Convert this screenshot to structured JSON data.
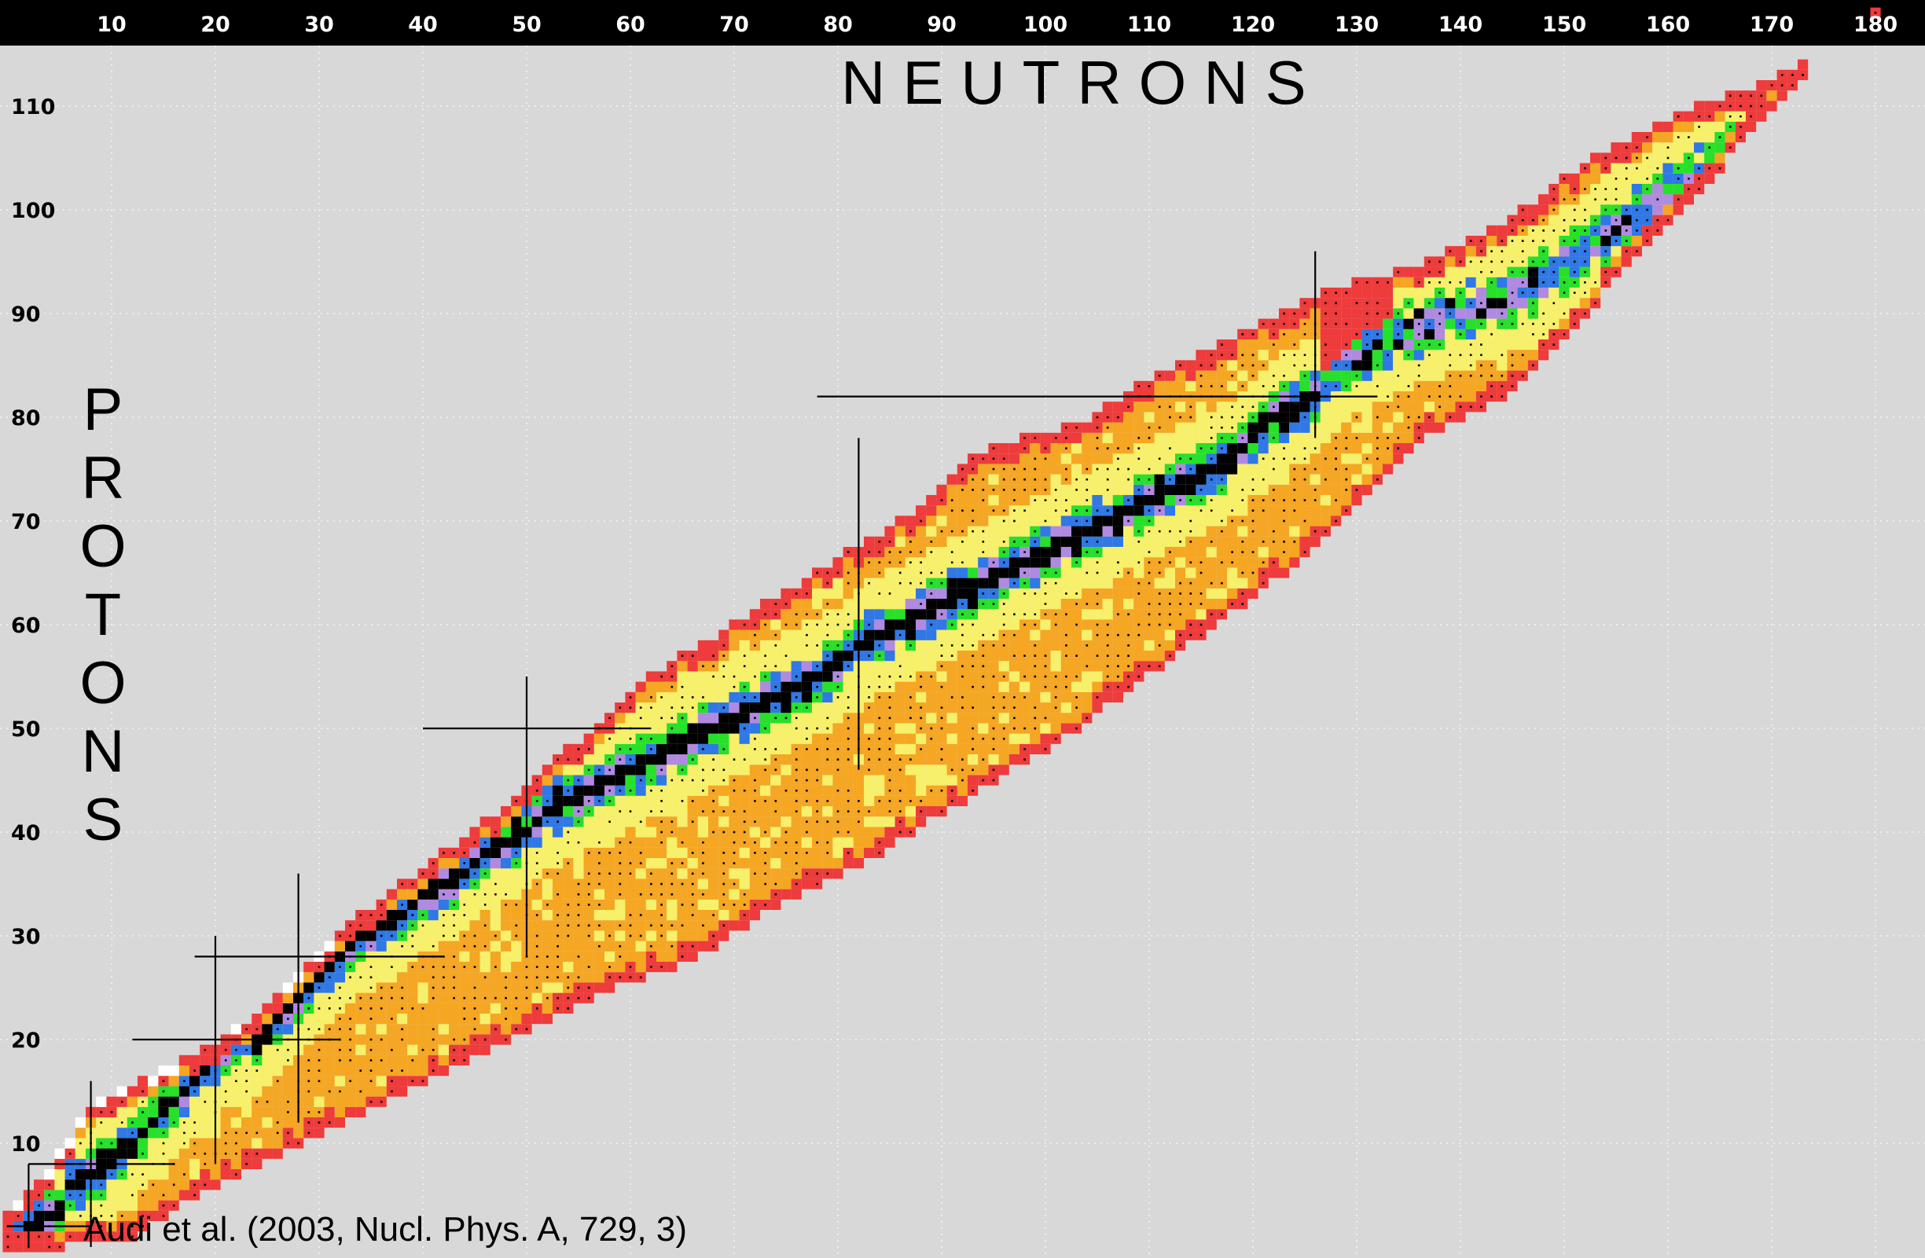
{
  "chart_data": {
    "type": "heatmap",
    "title": "",
    "xlabel": "NEUTRONS",
    "ylabel": "PROTONS",
    "x_ticks": [
      "10",
      "20",
      "30",
      "40",
      "50",
      "60",
      "70",
      "80",
      "90",
      "100",
      "110",
      "120",
      "130",
      "140",
      "150",
      "160",
      "170",
      "180"
    ],
    "y_ticks": [
      "10",
      "20",
      "30",
      "40",
      "50",
      "60",
      "70",
      "80",
      "90",
      "100",
      "110"
    ],
    "xlim": [
      0,
      182
    ],
    "ylim": [
      0,
      118
    ],
    "grid": true,
    "colors": {
      "background": "#d8d8d8",
      "stable": "#000000",
      "blue": "#2f78e6",
      "violet": "#b08ae0",
      "green": "#27e02a",
      "yellow": "#f7f06a",
      "orange": "#f5a623",
      "red": "#ee3b3b",
      "white": "#ffffff",
      "magic_line": "#000000"
    },
    "magic_numbers": [
      2,
      8,
      20,
      28,
      50,
      82,
      126
    ],
    "magic_lines": [
      {
        "axis": "n",
        "value": 2,
        "from": 0,
        "to": 8
      },
      {
        "axis": "z",
        "value": 2,
        "from": 0,
        "to": 8
      },
      {
        "axis": "n",
        "value": 8,
        "from": 0,
        "to": 16
      },
      {
        "axis": "z",
        "value": 8,
        "from": 2,
        "to": 16
      },
      {
        "axis": "n",
        "value": 20,
        "from": 8,
        "to": 30
      },
      {
        "axis": "z",
        "value": 20,
        "from": 12,
        "to": 32
      },
      {
        "axis": "n",
        "value": 28,
        "from": 12,
        "to": 36
      },
      {
        "axis": "z",
        "value": 28,
        "from": 18,
        "to": 42
      },
      {
        "axis": "n",
        "value": 50,
        "from": 28,
        "to": 55
      },
      {
        "axis": "z",
        "value": 50,
        "from": 40,
        "to": 62
      },
      {
        "axis": "n",
        "value": 82,
        "from": 46,
        "to": 78
      },
      {
        "axis": "z",
        "value": 82,
        "from": 78,
        "to": 132
      },
      {
        "axis": "n",
        "value": 126,
        "from": 78,
        "to": 96
      }
    ],
    "valley_stable": [
      [
        0,
        1
      ],
      [
        1,
        1
      ],
      [
        2,
        2
      ],
      [
        4,
        3
      ],
      [
        5,
        4
      ],
      [
        6,
        6
      ],
      [
        8,
        7
      ],
      [
        10,
        8
      ],
      [
        12,
        10
      ],
      [
        14,
        12
      ],
      [
        16,
        14
      ],
      [
        18,
        16
      ],
      [
        20,
        18
      ],
      [
        22,
        20
      ],
      [
        24,
        20
      ],
      [
        26,
        22
      ],
      [
        28,
        24
      ],
      [
        30,
        26
      ],
      [
        32,
        28
      ],
      [
        34,
        30
      ],
      [
        38,
        32
      ],
      [
        40,
        34
      ],
      [
        44,
        36
      ],
      [
        46,
        38
      ],
      [
        50,
        40
      ],
      [
        52,
        42
      ],
      [
        56,
        44
      ],
      [
        60,
        46
      ],
      [
        64,
        48
      ],
      [
        68,
        50
      ],
      [
        72,
        52
      ],
      [
        76,
        54
      ],
      [
        80,
        56
      ],
      [
        82,
        58
      ],
      [
        86,
        60
      ],
      [
        90,
        62
      ],
      [
        94,
        64
      ],
      [
        98,
        66
      ],
      [
        102,
        68
      ],
      [
        106,
        70
      ],
      [
        110,
        72
      ],
      [
        114,
        74
      ],
      [
        118,
        76
      ],
      [
        122,
        80
      ],
      [
        126,
        82
      ]
    ],
    "valley_end": [
      [
        126,
        82
      ],
      [
        130,
        86
      ],
      [
        134,
        88
      ],
      [
        140,
        90
      ],
      [
        146,
        92
      ],
      [
        152,
        96
      ],
      [
        158,
        100
      ],
      [
        164,
        104
      ],
      [
        170,
        108
      ],
      [
        176,
        114
      ]
    ],
    "bounds": {
      "n": [
        0,
        4,
        8,
        12,
        16,
        20,
        24,
        28,
        32,
        36,
        40,
        44,
        48,
        52,
        56,
        60,
        64,
        68,
        72,
        76,
        80,
        84,
        88,
        92,
        96,
        100,
        104,
        108,
        112,
        116,
        120,
        124,
        128,
        132,
        136,
        140,
        144,
        148,
        152,
        156,
        160,
        164,
        168,
        172,
        176,
        180
      ],
      "zmin": [
        0,
        0,
        1,
        1,
        4,
        6,
        8,
        10,
        12,
        14,
        16,
        18,
        20,
        22,
        24,
        26,
        27,
        29,
        32,
        34,
        36,
        38,
        41,
        43,
        46,
        48,
        51,
        54,
        57,
        60,
        63,
        66,
        70,
        74,
        78,
        80,
        82,
        86,
        90,
        95,
        99,
        103,
        108,
        112,
        117,
        119
      ],
      "zmax": [
        3,
        7,
        13,
        15,
        17,
        19,
        22,
        26,
        30,
        33,
        36,
        39,
        42,
        46,
        49,
        53,
        56,
        58,
        61,
        63,
        66,
        68,
        71,
        75,
        77,
        78,
        79,
        82,
        84,
        86,
        88,
        90,
        92,
        93,
        94,
        96,
        98,
        101,
        104,
        106,
        108,
        110,
        111,
        113,
        115,
        119
      ]
    },
    "legend": "none"
  },
  "citation": "Audi et al. (2003, Nucl. Phys. A, 729, 3)"
}
